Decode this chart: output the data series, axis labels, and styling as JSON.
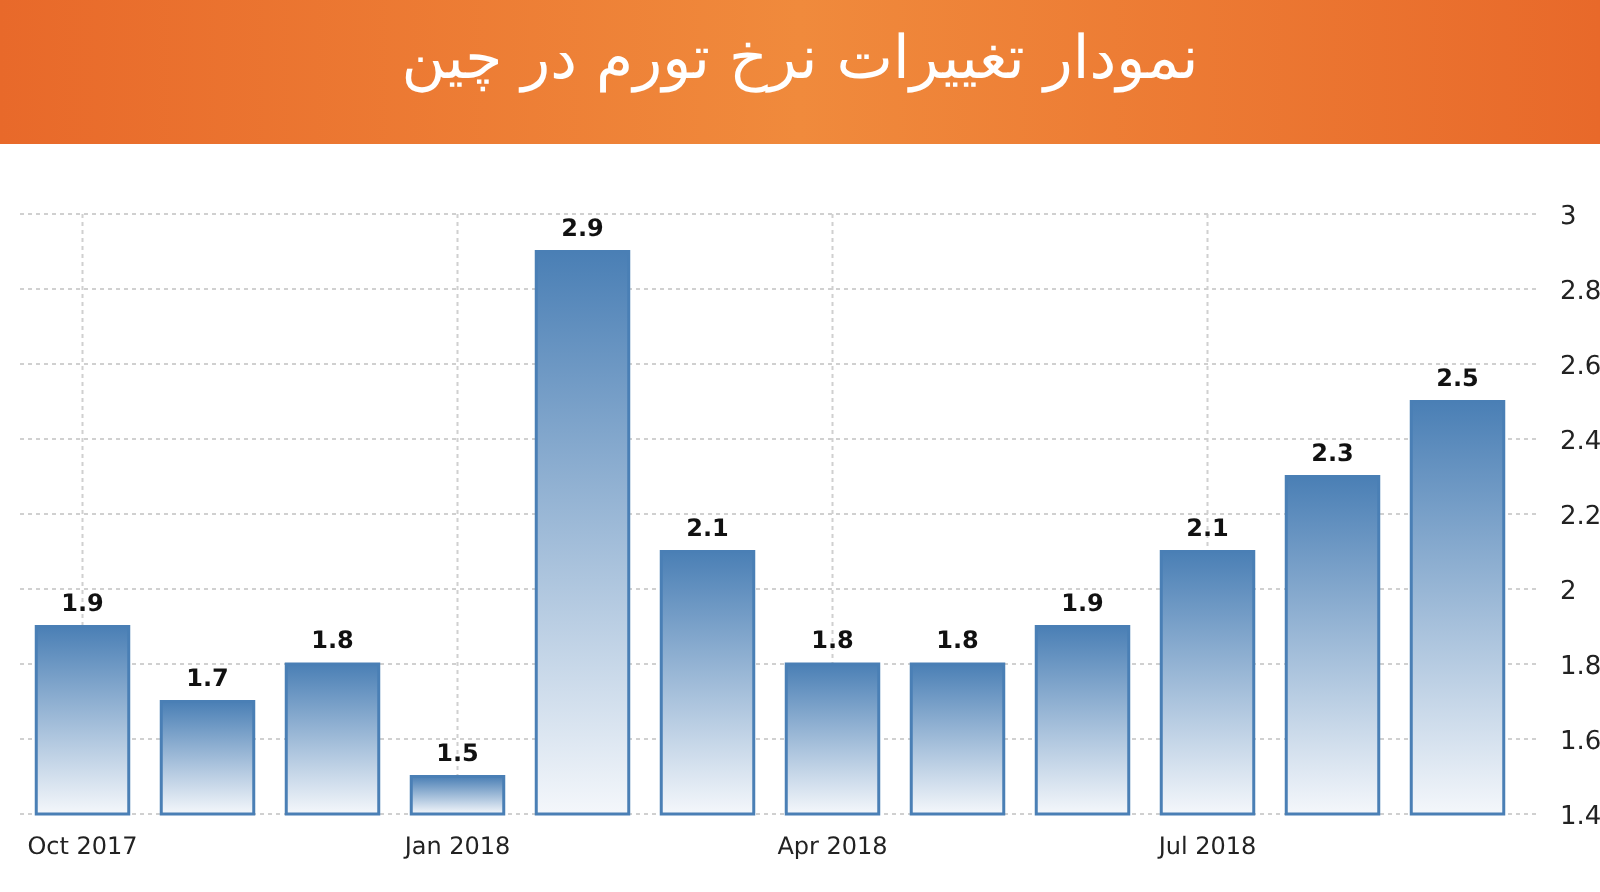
{
  "chart_data": {
    "type": "bar",
    "title": "نمودار تغییرات نرخ تورم در چین",
    "categories": [
      "Oct 2017",
      null,
      null,
      "Jan 2018",
      null,
      null,
      "Apr 2018",
      null,
      null,
      "Jul 2018",
      null,
      null
    ],
    "values": [
      1.9,
      1.7,
      1.8,
      1.5,
      2.9,
      2.1,
      1.8,
      1.8,
      1.9,
      2.1,
      2.3,
      2.5
    ],
    "color": "#4a7fb5",
    "ylim": [
      1.4,
      3
    ],
    "yticks": [
      1.4,
      1.6,
      1.8,
      2,
      2.2,
      2.4,
      2.6,
      2.8,
      3
    ],
    "grid": true,
    "data_labels": true
  }
}
